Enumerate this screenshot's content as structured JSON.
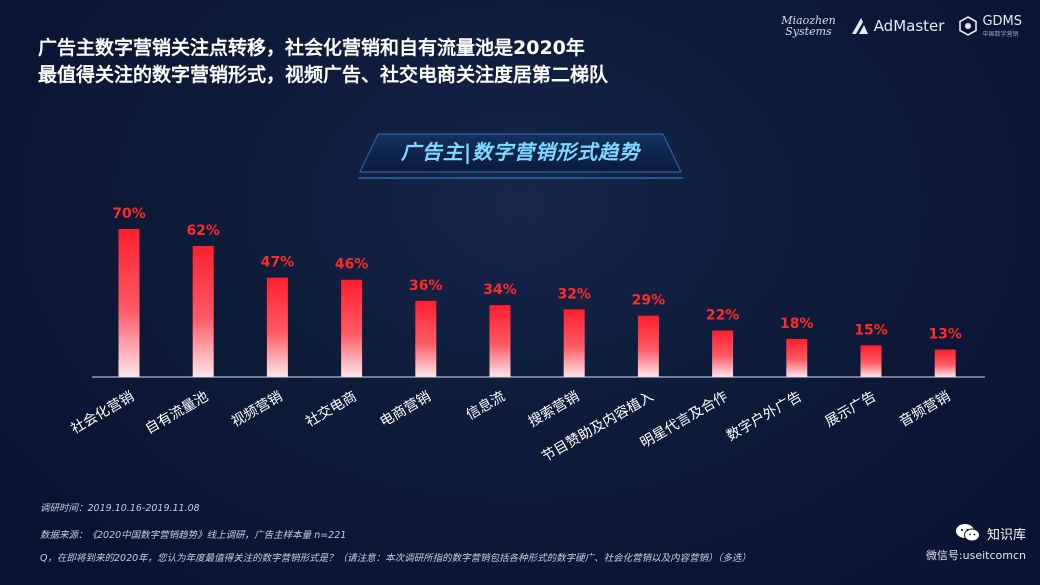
{
  "headline": {
    "line1": "广告主数字营销关注点转移，社会化营销和自有流量池是2020年",
    "line2": "最值得关注的数字营销形式，视频广告、社交电商关注度居第二梯队"
  },
  "logos": {
    "miaozhen_line1": "Miaozhen",
    "miaozhen_line2": "Systems",
    "admaster": "AdMaster",
    "gdms": "GDMS",
    "gdms_sub": "中国数字营销"
  },
  "chart_data": {
    "type": "bar",
    "title": "广告主|数字营销形式趋势",
    "categories": [
      "社会化营销",
      "自有流量池",
      "视频营销",
      "社交电商",
      "电商营销",
      "信息流",
      "搜索营销",
      "节目赞助及内容植入",
      "明星代言及合作",
      "数字户外广告",
      "展示广告",
      "音频营销"
    ],
    "values": [
      70,
      62,
      47,
      46,
      36,
      34,
      32,
      29,
      22,
      18,
      15,
      13
    ],
    "value_labels": [
      "70%",
      "62%",
      "47%",
      "46%",
      "36%",
      "34%",
      "32%",
      "29%",
      "22%",
      "18%",
      "15%",
      "13%"
    ],
    "ylim": [
      0,
      70
    ],
    "grid": false,
    "xlabel": "",
    "ylabel": "",
    "bar_color_top": "#ff1f2e",
    "bar_color_bottom": "#ffe6ea",
    "label_color": "#ff2a2a"
  },
  "footer": {
    "survey_time": "调研时间：2019.10.16-2019.11.08",
    "source": "数据来源：《2020中国数字营销趋势》线上调研，广告主样本量 n=221",
    "question": "Q，在即将到来的2020年，您认为年度最值得关注的数字营销形式是？（请注意：本次调研所指的数字营销包括各种形式的数字硬广、社会化营销以及内容营销）（多选）"
  },
  "watermark": {
    "name": "知识库",
    "id": "微信号:useitcomcn"
  }
}
